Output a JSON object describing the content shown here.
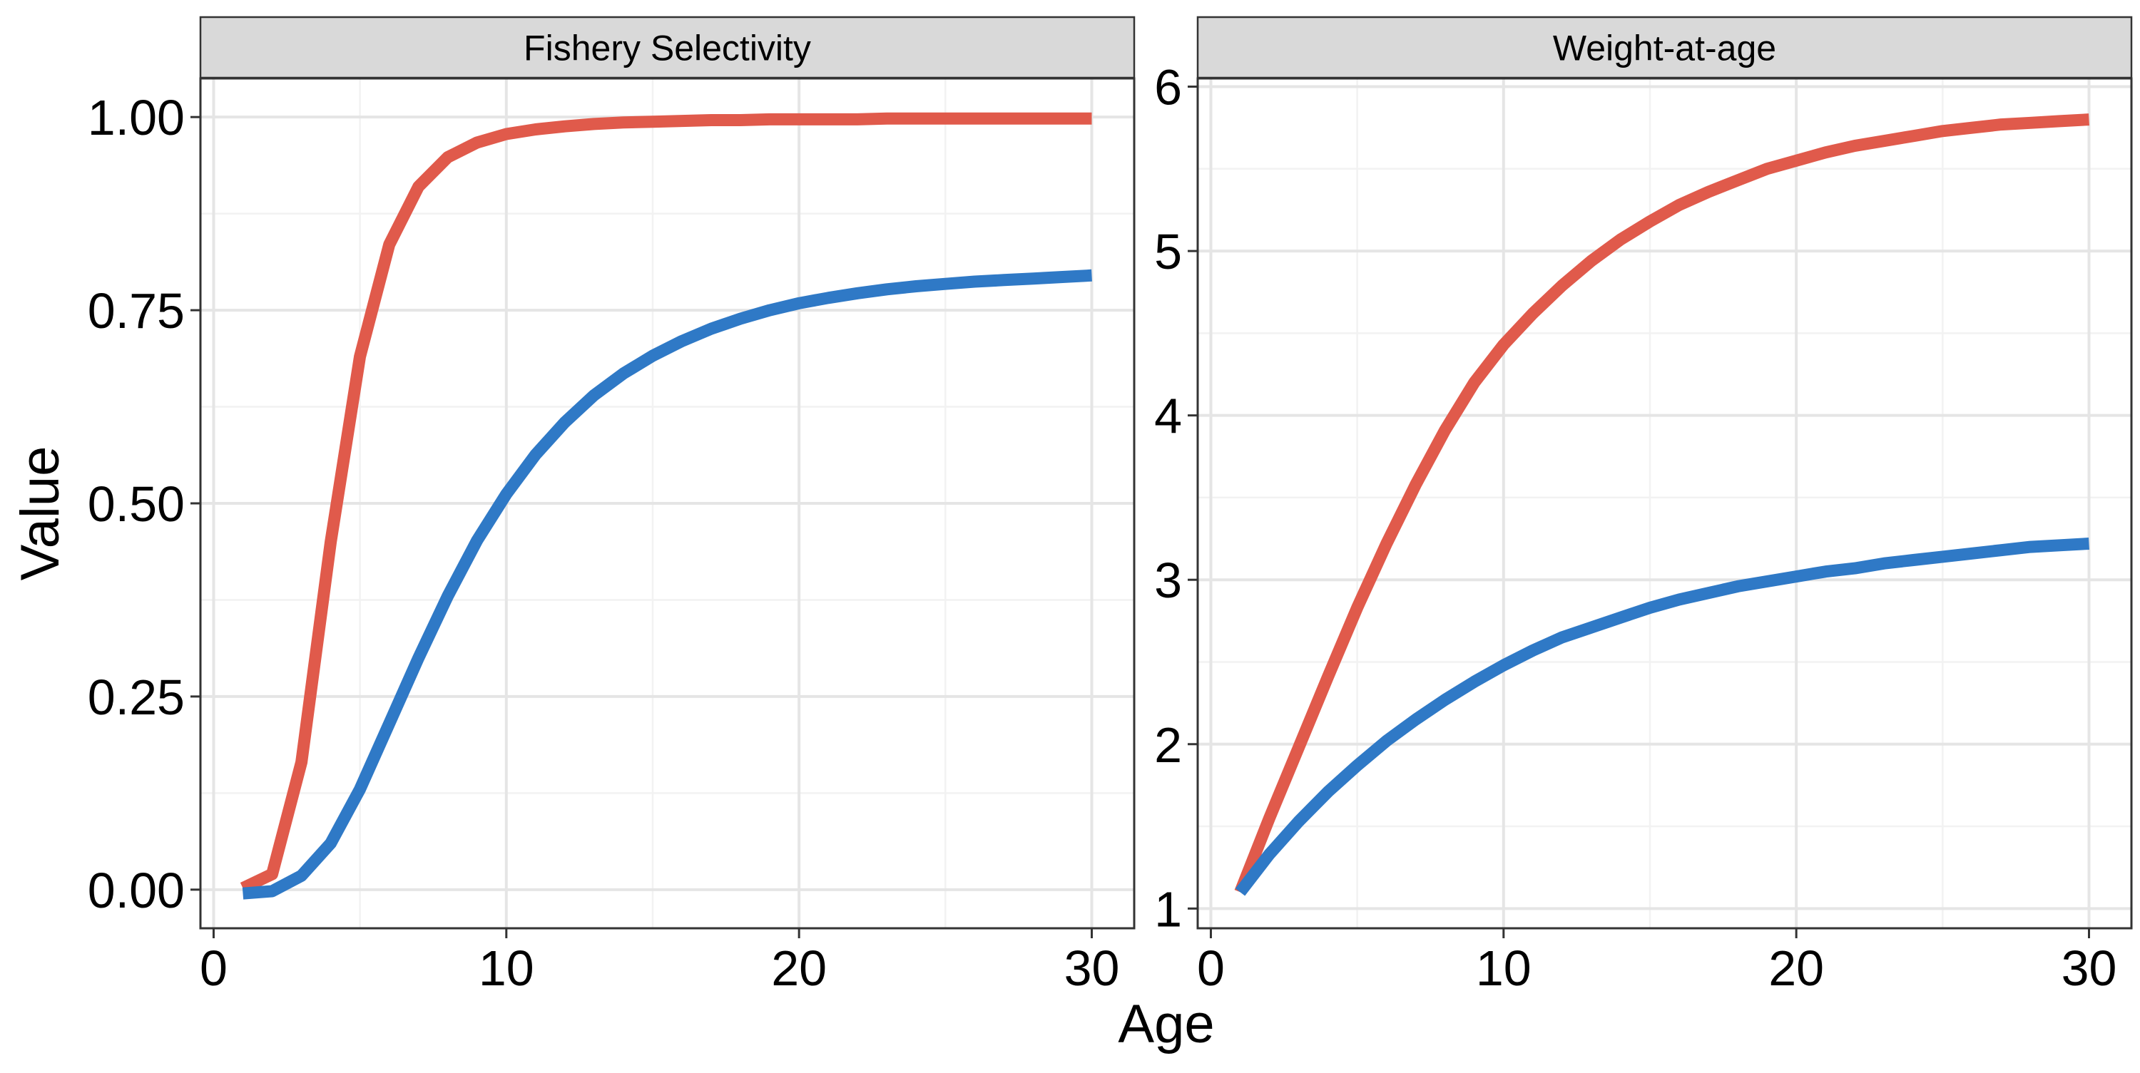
{
  "colors": {
    "series_red": "#e05a4b",
    "series_blue": "#2f79c6",
    "strip_fill": "#d9d9d9",
    "grid_major": "#e5e5e5",
    "grid_minor": "#f2f2f2",
    "panel_border": "#333333"
  },
  "axes": {
    "xlabel": "Age",
    "ylabel": "Value"
  },
  "chart_data": [
    {
      "type": "line",
      "title": "Fishery Selectivity",
      "xlim": [
        -0.45,
        31.45
      ],
      "ylim": [
        -0.05,
        1.05
      ],
      "x_ticks": [
        0,
        10,
        20,
        30
      ],
      "x_tick_labels": [
        "0",
        "10",
        "20",
        "30"
      ],
      "y_ticks": [
        0,
        0.25,
        0.5,
        0.75,
        1.0
      ],
      "y_tick_labels": [
        "0.00",
        "0.25",
        "0.50",
        "0.75",
        "1.00"
      ],
      "grid": true,
      "x": [
        1,
        2,
        3,
        4,
        5,
        6,
        7,
        8,
        9,
        10,
        11,
        12,
        13,
        14,
        15,
        16,
        17,
        18,
        19,
        20,
        21,
        22,
        23,
        24,
        25,
        26,
        27,
        28,
        29,
        30
      ],
      "series": [
        {
          "color": "#e05a4b",
          "values": [
            0.002,
            0.02,
            0.165,
            0.45,
            0.69,
            0.835,
            0.91,
            0.948,
            0.967,
            0.978,
            0.984,
            0.988,
            0.991,
            0.993,
            0.994,
            0.995,
            0.996,
            0.996,
            0.997,
            0.997,
            0.997,
            0.997,
            0.998,
            0.998,
            0.998,
            0.998,
            0.998,
            0.998,
            0.998,
            0.998
          ]
        },
        {
          "color": "#2f79c6",
          "values": [
            -0.005,
            -0.002,
            0.018,
            0.06,
            0.13,
            0.215,
            0.3,
            0.38,
            0.452,
            0.512,
            0.563,
            0.605,
            0.64,
            0.668,
            0.691,
            0.71,
            0.726,
            0.739,
            0.75,
            0.759,
            0.766,
            0.772,
            0.777,
            0.781,
            0.784,
            0.787,
            0.789,
            0.791,
            0.793,
            0.795
          ]
        }
      ]
    },
    {
      "type": "line",
      "title": "Weight-at-age",
      "xlim": [
        -0.45,
        31.45
      ],
      "ylim": [
        0.88,
        6.05
      ],
      "x_ticks": [
        0,
        10,
        20,
        30
      ],
      "x_tick_labels": [
        "0",
        "10",
        "20",
        "30"
      ],
      "y_ticks": [
        1,
        2,
        3,
        4,
        5,
        6
      ],
      "y_tick_labels": [
        "1",
        "2",
        "3",
        "4",
        "5",
        "6"
      ],
      "grid": true,
      "x": [
        1,
        2,
        3,
        4,
        5,
        6,
        7,
        8,
        9,
        10,
        11,
        12,
        13,
        14,
        15,
        16,
        17,
        18,
        19,
        20,
        21,
        22,
        23,
        24,
        25,
        26,
        27,
        28,
        29,
        30
      ],
      "series": [
        {
          "color": "#e05a4b",
          "values": [
            1.1,
            1.55,
            1.98,
            2.41,
            2.83,
            3.22,
            3.58,
            3.91,
            4.2,
            4.43,
            4.62,
            4.79,
            4.94,
            5.07,
            5.18,
            5.28,
            5.36,
            5.43,
            5.5,
            5.55,
            5.6,
            5.64,
            5.67,
            5.7,
            5.73,
            5.75,
            5.77,
            5.78,
            5.79,
            5.8
          ]
        },
        {
          "color": "#2f79c6",
          "values": [
            1.1,
            1.33,
            1.53,
            1.71,
            1.87,
            2.02,
            2.15,
            2.27,
            2.38,
            2.48,
            2.57,
            2.65,
            2.71,
            2.77,
            2.83,
            2.88,
            2.92,
            2.96,
            2.99,
            3.02,
            3.05,
            3.07,
            3.1,
            3.12,
            3.14,
            3.16,
            3.18,
            3.2,
            3.21,
            3.22
          ]
        }
      ]
    }
  ]
}
